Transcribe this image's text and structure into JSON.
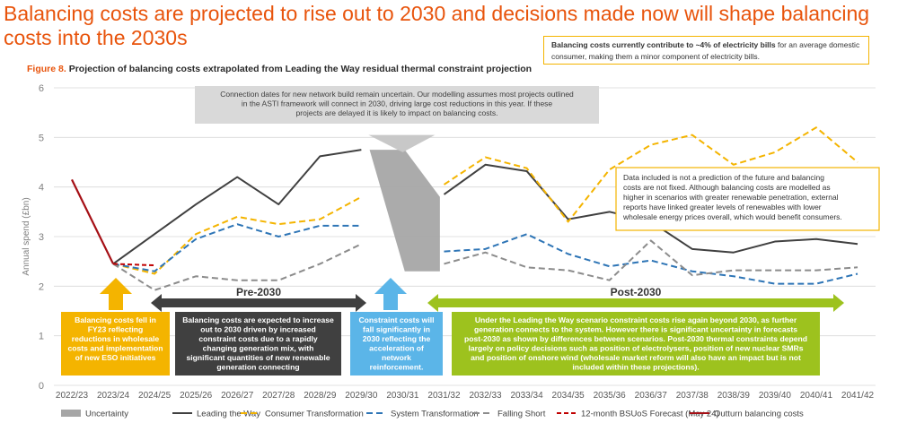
{
  "title": "Balancing costs are projected to rise out to 2030 and decisions made now will shape balancing costs into the 2030s",
  "figure_label": "Figure 8.",
  "figure_caption": "Projection of balancing costs extrapolated from Leading the Way residual thermal constraint projection",
  "note": {
    "bold": "Balancing costs currently contribute to ~4% of electricity bills",
    "text": " for an average domestic consumer, making them a minor component of electricity bills."
  },
  "chart_data": {
    "type": "line",
    "ylabel": "Annual spend (£bn)",
    "ylim": [
      0,
      6
    ],
    "yticks": [
      "0",
      "1",
      "2",
      "3",
      "4",
      "5",
      "6"
    ],
    "categories": [
      "2022/23",
      "2023/24",
      "2024/25",
      "2025/26",
      "2026/27",
      "2027/28",
      "2028/29",
      "2029/30",
      "2030/31",
      "2031/32",
      "2032/33",
      "2033/34",
      "2034/35",
      "2035/36",
      "2036/37",
      "2037/38",
      "2038/39",
      "2039/40",
      "2040/41",
      "2041/42"
    ],
    "series": [
      {
        "name": "Leading the Way",
        "color": "#404040",
        "dash": "",
        "width": 2,
        "values": [
          null,
          2.45,
          3.05,
          3.65,
          4.2,
          3.65,
          4.62,
          4.75,
          null,
          3.85,
          4.45,
          4.32,
          3.35,
          3.5,
          3.3,
          2.75,
          2.68,
          2.9,
          2.95,
          2.85
        ]
      },
      {
        "name": "Consumer Transformation",
        "color": "#f4b400",
        "dash": "7,4",
        "width": 2,
        "values": [
          null,
          2.45,
          2.25,
          3.05,
          3.4,
          3.25,
          3.35,
          3.8,
          null,
          4.05,
          4.6,
          4.38,
          3.3,
          4.35,
          4.85,
          5.05,
          4.45,
          4.7,
          5.2,
          4.5
        ]
      },
      {
        "name": "System Transformation",
        "color": "#2e75b6",
        "dash": "7,4",
        "width": 2,
        "values": [
          null,
          2.45,
          2.3,
          2.95,
          3.25,
          3.0,
          3.22,
          3.22,
          null,
          2.7,
          2.75,
          3.05,
          2.65,
          2.4,
          2.52,
          2.3,
          2.2,
          2.05,
          2.05,
          2.25
        ]
      },
      {
        "name": "Falling Short",
        "color": "#8c8c8c",
        "dash": "7,4",
        "width": 2,
        "values": [
          null,
          2.45,
          1.92,
          2.2,
          2.12,
          2.12,
          2.45,
          2.85,
          null,
          2.45,
          2.68,
          2.38,
          2.32,
          2.12,
          2.92,
          2.22,
          2.32,
          2.32,
          2.32,
          2.38
        ]
      },
      {
        "name": "12-month BSUoS Forecast (May 24)",
        "color": "#c00000",
        "dash": "5,3",
        "width": 2,
        "values": [
          null,
          2.45,
          2.42,
          null,
          null,
          null,
          null,
          null,
          null,
          null,
          null,
          null,
          null,
          null,
          null,
          null,
          null,
          null,
          null,
          null
        ]
      },
      {
        "name": "Outturn balancing costs",
        "color": "#a50f15",
        "dash": "",
        "width": 2.2,
        "values": [
          4.15,
          2.45,
          null,
          null,
          null,
          null,
          null,
          null,
          null,
          null,
          null,
          null,
          null,
          null,
          null,
          null,
          null,
          null,
          null,
          null
        ]
      }
    ],
    "uncertainty": {
      "name": "Uncertainty",
      "color": "#a6a6a6",
      "from_index": 7.2,
      "to_index": 8.9,
      "low": 2.3,
      "high": 4.75
    },
    "callouts": {
      "connection": "Connection dates for new network build remain uncertain. Our modelling assumes most projects outlined in the ASTI framework will connect in 2030, driving large cost reductions in this year. If these projects are delayed it is likely to impact on balancing costs.",
      "disclaimer": "Data included is not a prediction of the future and balancing costs are not fixed. Although balancing costs are modelled as higher in scenarios with greater renewable penetration, external reports have linked greater levels of renewables with lower wholesale energy prices overall, which would benefit consumers.",
      "fell": "Balancing costs fell in FY23 reflecting reductions in wholesale costs and implementation of new ESO initiatives",
      "pre_label": "Pre-2030",
      "pre_text": "Balancing costs are expected to increase out to 2030 driven by increased constraint costs due to a rapidly changing generation mix, with significant quantities of new renewable generation connecting",
      "constraint": "Constraint costs will fall significantly in 2030 reflecting the acceleration of network reinforcement.",
      "post_label": "Post-2030",
      "post_text": "Under the Leading the Way scenario constraint costs rise again beyond 2030, as further generation connects to the system. However there is significant uncertainty in forecasts post-2030 as shown by differences between scenarios. Post-2030 thermal constraints depend largely on policy decisions such as position of electrolysers, position of new nuclear SMRs and position of onshore wind (wholesale market reform will also have an impact but is not included within these projections)."
    },
    "legend": [
      "Uncertainty",
      "Leading the Way",
      "Consumer Transformation",
      "System Transformation",
      "Falling Short",
      "12-month BSUoS Forecast (May 24)",
      "Outturn balancing costs"
    ]
  }
}
